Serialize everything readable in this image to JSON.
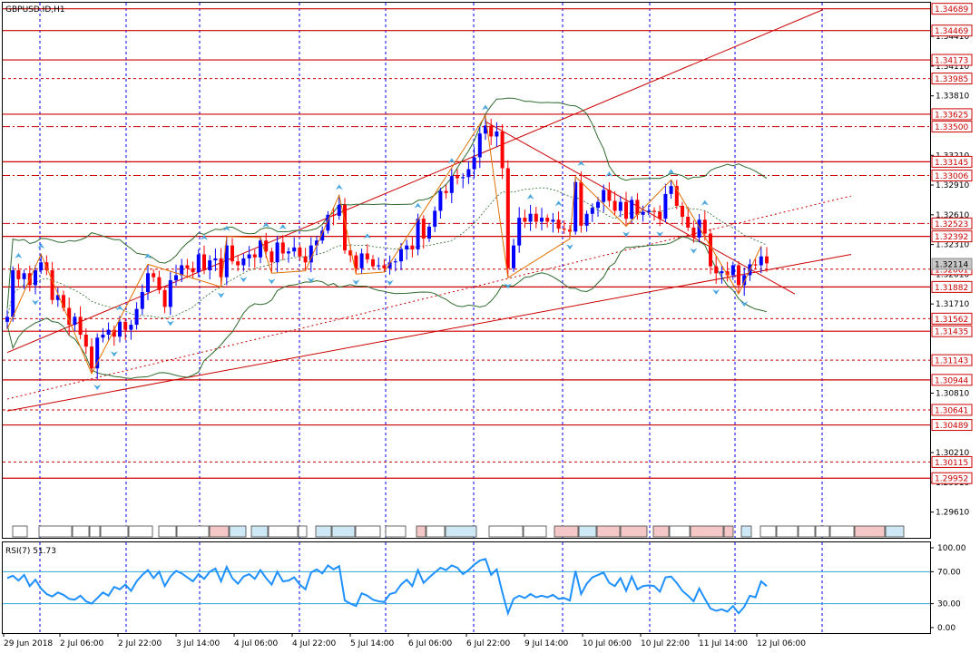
{
  "window": {
    "title": "GBPUSD.ID,H1"
  },
  "rsi": {
    "label": "RSI(7) 51.73",
    "ticks": [
      "100.00",
      "70.00",
      "30.00",
      "0.00"
    ],
    "levels": [
      70,
      30
    ]
  },
  "colors": {
    "background": "#ffffff",
    "grid": "#0000ff",
    "bull": "#0000ff",
    "bear": "#ff0000",
    "level_line": "#cc0000",
    "bollinger": "#2e6b2e",
    "zigzag": "#e07000",
    "arrow": "#4aa8e0",
    "rsi_line": "#1e90ff",
    "rsi_level": "#29a9d4"
  },
  "chart_data": {
    "type": "candlestick",
    "symbol": "GBPUSD.ID",
    "timeframe": "H1",
    "y_range": [
      1.2935,
      1.3475
    ],
    "price_axis_ticks": [
      "1.34410",
      "1.34110",
      "1.33810",
      "1.33210",
      "1.32910",
      "1.32610",
      "1.32310",
      "1.32010",
      "1.31710",
      "1.30810",
      "1.30210",
      "1.29910",
      "1.29610"
    ],
    "time_axis_labels": [
      "29 Jun 2018",
      "2 Jul 06:00",
      "2 Jul 22:00",
      "3 Jul 14:00",
      "4 Jul 06:00",
      "4 Jul 22:00",
      "5 Jul 14:00",
      "6 Jul 06:00",
      "6 Jul 22:00",
      "9 Jul 14:00",
      "10 Jul 06:00",
      "10 Jul 22:00",
      "11 Jul 14:00",
      "12 Jul 06:00"
    ],
    "current_price": "1.32114",
    "horizontal_levels": [
      {
        "price": "1.34689",
        "style": "solid"
      },
      {
        "price": "1.34469",
        "style": "solid"
      },
      {
        "price": "1.34173",
        "style": "solid"
      },
      {
        "price": "1.33985",
        "style": "dash"
      },
      {
        "price": "1.33625",
        "style": "solid"
      },
      {
        "price": "1.33500",
        "style": "dashdot"
      },
      {
        "price": "1.33145",
        "style": "solid"
      },
      {
        "price": "1.33006",
        "style": "dashdot"
      },
      {
        "price": "1.32523",
        "style": "dashdot"
      },
      {
        "price": "1.32392",
        "style": "solid"
      },
      {
        "price": "1.32061",
        "style": "dash"
      },
      {
        "price": "1.31882",
        "style": "solid"
      },
      {
        "price": "1.31562",
        "style": "dash"
      },
      {
        "price": "1.31435",
        "style": "solid"
      },
      {
        "price": "1.31143",
        "style": "dash"
      },
      {
        "price": "1.30944",
        "style": "solid"
      },
      {
        "price": "1.30641",
        "style": "dash"
      },
      {
        "price": "1.30489",
        "style": "solid"
      },
      {
        "price": "1.30115",
        "style": "dash"
      },
      {
        "price": "1.29952",
        "style": "solid"
      }
    ],
    "channel_lines": [
      {
        "from": [
          0,
          1.3122
        ],
        "to": [
          145,
          1.3468
        ],
        "style": "solid"
      },
      {
        "from": [
          0,
          1.3063
        ],
        "to": [
          150,
          1.3221
        ],
        "style": "solid"
      },
      {
        "from": [
          0,
          1.3075
        ],
        "to": [
          150,
          1.328
        ],
        "style": "dot"
      },
      {
        "from": [
          85,
          1.3355
        ],
        "to": [
          140,
          1.3181
        ],
        "style": "solid"
      }
    ],
    "closes": [
      1.3158,
      1.3205,
      1.3196,
      1.3202,
      1.319,
      1.3205,
      1.3213,
      1.3205,
      1.3175,
      1.318,
      1.3167,
      1.315,
      1.3158,
      1.314,
      1.3128,
      1.3106,
      1.3137,
      1.314,
      1.3145,
      1.3138,
      1.3153,
      1.3145,
      1.315,
      1.3166,
      1.3183,
      1.3202,
      1.3198,
      1.3185,
      1.3168,
      1.3195,
      1.32,
      1.321,
      1.3207,
      1.3203,
      1.3221,
      1.3205,
      1.3215,
      1.3217,
      1.3198,
      1.323,
      1.3214,
      1.321,
      1.3217,
      1.3221,
      1.3218,
      1.3235,
      1.3224,
      1.3213,
      1.3233,
      1.3222,
      1.3224,
      1.3228,
      1.3219,
      1.3213,
      1.323,
      1.3235,
      1.3245,
      1.3261,
      1.326,
      1.3271,
      1.3225,
      1.322,
      1.3207,
      1.3222,
      1.3216,
      1.3209,
      1.321,
      1.3207,
      1.3213,
      1.3214,
      1.3226,
      1.323,
      1.3226,
      1.3257,
      1.3237,
      1.3249,
      1.3265,
      1.3285,
      1.3283,
      1.33,
      1.3298,
      1.3299,
      1.3307,
      1.3319,
      1.3343,
      1.3351,
      1.334,
      1.3345,
      1.3308,
      1.3207,
      1.323,
      1.3258,
      1.3254,
      1.3262,
      1.3254,
      1.3258,
      1.3254,
      1.3256,
      1.3247,
      1.3246,
      1.3244,
      1.3294,
      1.325,
      1.3262,
      1.3268,
      1.3274,
      1.3286,
      1.3275,
      1.3265,
      1.3274,
      1.3257,
      1.3276,
      1.3261,
      1.3264,
      1.3265,
      1.3264,
      1.3257,
      1.3282,
      1.329,
      1.327,
      1.3259,
      1.3248,
      1.3238,
      1.3256,
      1.3242,
      1.3209,
      1.3202,
      1.3204,
      1.32,
      1.321,
      1.319,
      1.32,
      1.3211,
      1.321,
      1.3219,
      1.3212
    ],
    "rsi7": [
      62,
      65,
      59,
      66,
      52,
      60,
      49,
      42,
      39,
      44,
      41,
      36,
      35,
      40,
      33,
      30,
      37,
      44,
      40,
      51,
      48,
      54,
      46,
      58,
      66,
      72,
      62,
      70,
      52,
      64,
      71,
      68,
      63,
      58,
      67,
      61,
      70,
      74,
      58,
      76,
      62,
      55,
      64,
      67,
      61,
      72,
      62,
      54,
      70,
      58,
      59,
      63,
      54,
      48,
      69,
      73,
      68,
      78,
      73,
      77,
      34,
      30,
      27,
      43,
      40,
      35,
      33,
      32,
      42,
      44,
      54,
      60,
      52,
      72,
      56,
      63,
      69,
      75,
      72,
      78,
      75,
      67,
      72,
      79,
      84,
      86,
      66,
      73,
      44,
      18,
      36,
      40,
      37,
      42,
      38,
      40,
      38,
      41,
      36,
      37,
      34,
      71,
      42,
      55,
      63,
      66,
      69,
      56,
      52,
      62,
      46,
      64,
      48,
      52,
      53,
      52,
      45,
      63,
      64,
      56,
      46,
      40,
      33,
      49,
      36,
      24,
      21,
      23,
      20,
      27,
      18,
      26,
      40,
      38,
      58,
      52
    ]
  }
}
